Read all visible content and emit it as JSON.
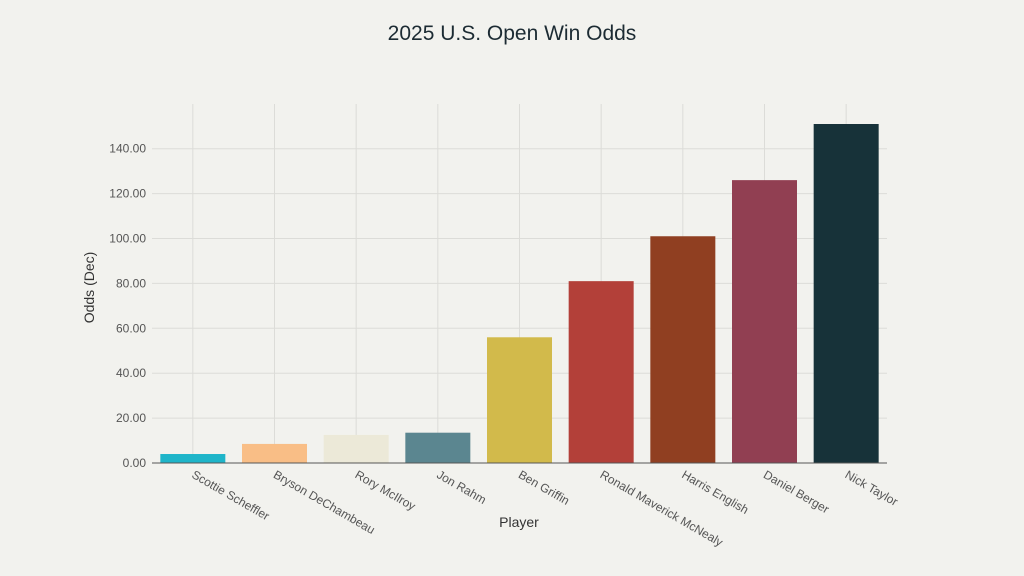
{
  "chart_data": {
    "type": "bar",
    "title": "2025 U.S. Open Win Odds",
    "xlabel": "Player",
    "ylabel": "Odds (Dec)",
    "categories": [
      "Scottie Scheffler",
      "Bryson DeChambeau",
      "Rory McIlroy",
      "Jon Rahm",
      "Ben Griffin",
      "Ronald Maverick McNealy",
      "Harris English",
      "Daniel Berger",
      "Nick Taylor"
    ],
    "values": [
      4.0,
      8.5,
      12.5,
      13.5,
      56.0,
      81.0,
      101.0,
      126.0,
      151.0
    ],
    "colors": [
      "#1fb5c9",
      "#f9be86",
      "#ece9d8",
      "#5b8690",
      "#d2ba4b",
      "#b34039",
      "#903f21",
      "#913f52",
      "#173239"
    ],
    "ylim": [
      0,
      160
    ],
    "yticks": [
      0,
      20,
      40,
      60,
      80,
      100,
      120,
      140
    ],
    "ytick_labels": [
      "0.00",
      "20.00",
      "40.00",
      "60.00",
      "80.00",
      "100.00",
      "120.00",
      "140.00"
    ],
    "grid": true
  }
}
